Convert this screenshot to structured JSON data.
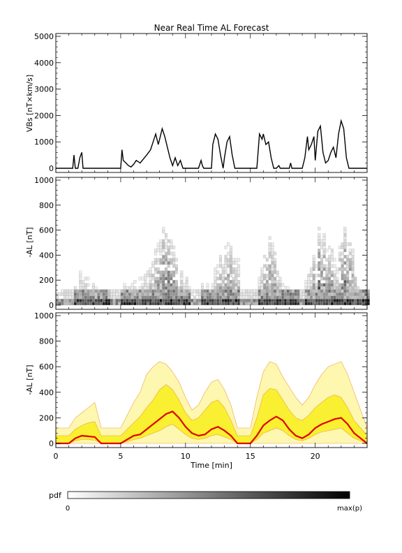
{
  "title": "Near Real Time AL Forecast",
  "colors": {
    "axis": "#000000",
    "line": "#000000",
    "median": "#e00000",
    "band_inner": "#f8f030",
    "band_outer": "#fdf7b0",
    "band_edge": "#f0a040"
  },
  "x_ticks": [
    "0",
    "5",
    "10",
    "15",
    "20"
  ],
  "xlabel": "Time [min]",
  "colorbar": {
    "label": "pdf",
    "min_label": "0",
    "max_label": "max(p)",
    "gradient": "white-to-black"
  },
  "chart_data": [
    {
      "type": "line",
      "name": "VBs",
      "ylabel": "VBs [nT×km/s]",
      "ylim": [
        0,
        5000
      ],
      "xlim": [
        0,
        24
      ],
      "y_ticks": [
        "0",
        "1000",
        "2000",
        "3000",
        "4000",
        "5000"
      ],
      "x": [
        0,
        1.3,
        1.4,
        1.5,
        1.7,
        1.85,
        2.0,
        2.1,
        5.0,
        5.1,
        5.2,
        5.4,
        5.6,
        5.8,
        6.0,
        6.2,
        6.5,
        7.0,
        7.3,
        7.5,
        7.7,
        7.9,
        8.0,
        8.2,
        8.4,
        8.6,
        8.8,
        9.0,
        9.2,
        9.4,
        9.6,
        9.8,
        10.0,
        11.0,
        11.2,
        11.3,
        11.4,
        11.6,
        11.8,
        12.0,
        12.1,
        12.3,
        12.5,
        12.7,
        12.9,
        13.0,
        13.2,
        13.4,
        13.6,
        13.8,
        15.5,
        15.7,
        15.9,
        16.0,
        16.2,
        16.4,
        16.6,
        16.8,
        17.0,
        17.2,
        17.3,
        17.5,
        17.7,
        18.0,
        18.1,
        18.2,
        19.0,
        19.2,
        19.4,
        19.5,
        19.7,
        19.9,
        20.0,
        20.2,
        20.4,
        20.6,
        20.8,
        21.0,
        21.2,
        21.4,
        21.6,
        21.8,
        22.0,
        22.2,
        22.4,
        22.6,
        22.8,
        23.0,
        24.0
      ],
      "y": [
        0,
        0,
        500,
        0,
        0,
        400,
        600,
        0,
        0,
        700,
        300,
        200,
        100,
        50,
        150,
        300,
        200,
        500,
        700,
        1000,
        1300,
        900,
        1100,
        1500,
        1200,
        800,
        400,
        100,
        400,
        100,
        300,
        0,
        0,
        0,
        300,
        100,
        0,
        0,
        0,
        0,
        900,
        1300,
        1100,
        500,
        0,
        400,
        1000,
        1200,
        500,
        0,
        0,
        1300,
        1100,
        1300,
        900,
        1000,
        400,
        0,
        0,
        100,
        0,
        0,
        0,
        0,
        200,
        0,
        0,
        400,
        1200,
        700,
        900,
        1200,
        300,
        1400,
        1600,
        600,
        200,
        300,
        600,
        800,
        400,
        1300,
        1800,
        1500,
        400,
        0,
        0,
        0,
        0
      ],
      "grid": false
    },
    {
      "type": "heatmap",
      "name": "AL probability density",
      "ylabel": "-AL [nT]",
      "ylim": [
        0,
        1000
      ],
      "xlim": [
        0,
        24
      ],
      "y_ticks": [
        "0",
        "200",
        "400",
        "600",
        "800",
        "1000"
      ],
      "bin_width_x": 0.2,
      "bin_height_y": 25,
      "intensity_scale": "0 to max(p)",
      "grid": false
    },
    {
      "type": "area",
      "name": "AL forecast",
      "ylabel": "-AL [nT]",
      "ylim": [
        0,
        1000
      ],
      "xlim": [
        0,
        24
      ],
      "y_ticks": [
        "0",
        "200",
        "400",
        "600",
        "800",
        "1000"
      ],
      "x": [
        0,
        1,
        1.5,
        2,
        2.5,
        3,
        3.5,
        4,
        4.5,
        5,
        5.5,
        6,
        6.5,
        7,
        7.5,
        8,
        8.5,
        9,
        9.5,
        10,
        10.5,
        11,
        11.5,
        12,
        12.5,
        13,
        13.5,
        14,
        14.5,
        15,
        15.5,
        16,
        16.5,
        17,
        17.5,
        18,
        18.5,
        19,
        19.5,
        20,
        20.5,
        21,
        21.5,
        22,
        22.5,
        23,
        23.5,
        24
      ],
      "series": [
        {
          "name": "outer-high",
          "values": [
            120,
            120,
            200,
            240,
            280,
            320,
            120,
            120,
            120,
            120,
            220,
            320,
            400,
            540,
            600,
            640,
            620,
            560,
            480,
            360,
            260,
            300,
            400,
            480,
            500,
            420,
            300,
            120,
            120,
            120,
            360,
            560,
            640,
            620,
            520,
            440,
            360,
            300,
            360,
            460,
            540,
            600,
            620,
            640,
            540,
            400,
            260,
            120
          ]
        },
        {
          "name": "inner-high",
          "values": [
            60,
            60,
            110,
            140,
            160,
            170,
            60,
            60,
            60,
            60,
            110,
            160,
            210,
            280,
            340,
            420,
            460,
            420,
            340,
            240,
            180,
            200,
            260,
            320,
            340,
            280,
            180,
            60,
            60,
            60,
            200,
            380,
            430,
            420,
            340,
            260,
            200,
            180,
            220,
            280,
            320,
            360,
            380,
            360,
            280,
            180,
            120,
            60
          ]
        },
        {
          "name": "median",
          "values": [
            0,
            0,
            40,
            60,
            55,
            50,
            0,
            0,
            0,
            0,
            30,
            60,
            70,
            110,
            150,
            190,
            230,
            250,
            200,
            130,
            80,
            60,
            70,
            110,
            130,
            100,
            60,
            0,
            0,
            0,
            60,
            140,
            180,
            210,
            180,
            110,
            60,
            40,
            70,
            120,
            150,
            170,
            190,
            200,
            150,
            80,
            40,
            0
          ]
        },
        {
          "name": "inner-low",
          "values": [
            0,
            0,
            20,
            30,
            30,
            25,
            0,
            0,
            0,
            0,
            15,
            30,
            40,
            60,
            80,
            100,
            130,
            150,
            110,
            70,
            40,
            30,
            40,
            60,
            70,
            50,
            30,
            0,
            0,
            0,
            30,
            80,
            100,
            120,
            100,
            60,
            30,
            20,
            40,
            70,
            90,
            100,
            110,
            120,
            80,
            40,
            20,
            0
          ]
        }
      ],
      "grid": false
    }
  ]
}
